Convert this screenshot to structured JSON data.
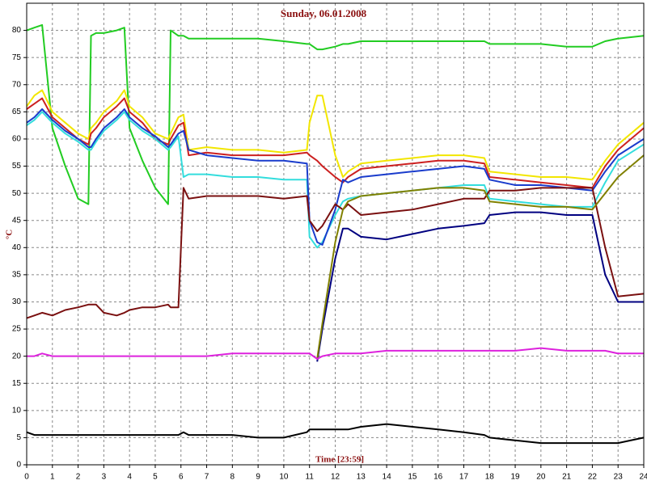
{
  "chart_data": {
    "type": "line",
    "title": "Sunday, 06.01.2008",
    "x_label": "Time [23:59]",
    "y_label": "°C",
    "xlim": [
      0,
      24
    ],
    "ylim": [
      0,
      85
    ],
    "xticks": [
      0,
      1,
      2,
      3,
      4,
      5,
      6,
      7,
      8,
      9,
      10,
      11,
      12,
      13,
      14,
      15,
      16,
      17,
      18,
      19,
      20,
      21,
      22,
      23,
      24
    ],
    "yticks": [
      0,
      5,
      10,
      15,
      20,
      25,
      30,
      35,
      40,
      45,
      50,
      55,
      60,
      65,
      70,
      75,
      80
    ],
    "grid": true,
    "x": [
      0,
      0.3,
      0.6,
      1,
      1.5,
      2,
      2.4,
      2.5,
      2.7,
      3,
      3.5,
      3.8,
      4,
      4.5,
      5,
      5.5,
      5.6,
      5.9,
      6.1,
      6.3,
      7,
      8,
      9,
      10,
      10.9,
      11,
      11.3,
      11.5,
      12,
      12.3,
      12.5,
      13,
      14,
      15,
      16,
      17,
      17.8,
      18,
      19,
      20,
      21,
      22,
      22.5,
      23,
      24
    ],
    "series": [
      {
        "color": "#22cc22",
        "values": [
          80,
          80.5,
          81,
          62,
          55,
          49,
          48,
          79,
          79.5,
          79.5,
          80,
          80.5,
          62,
          56,
          51,
          48,
          80,
          79,
          79,
          78.5,
          78.5,
          78.5,
          78.5,
          78,
          77.5,
          77.5,
          76.5,
          76.5,
          77,
          77.5,
          77.5,
          78,
          78,
          78,
          78,
          78,
          78,
          77.5,
          77.5,
          77.5,
          77,
          77,
          78,
          78.5,
          79
        ]
      },
      {
        "color": "#f2e600",
        "values": [
          66,
          68,
          69,
          65,
          63,
          61,
          60,
          62,
          63,
          65,
          67,
          69,
          66,
          64,
          61,
          60,
          61,
          64,
          64.5,
          58,
          58.5,
          58,
          58,
          57.5,
          58,
          63,
          68,
          68,
          57,
          53,
          54,
          55.5,
          56,
          56.5,
          57,
          57,
          56.5,
          54,
          53.5,
          53,
          53,
          52.5,
          56,
          59,
          63
        ]
      },
      {
        "color": "#cc2020",
        "values": [
          65.5,
          66.5,
          67.5,
          64,
          62,
          60,
          59,
          61,
          62,
          64,
          66,
          67.5,
          65,
          63,
          60,
          59,
          60,
          62.5,
          63,
          57,
          57.5,
          57,
          57,
          57,
          57.5,
          57,
          56,
          55,
          53,
          52,
          53,
          54.5,
          55,
          55.5,
          56,
          56,
          55.5,
          53,
          52.5,
          52,
          51.5,
          51,
          55,
          58,
          62
        ]
      },
      {
        "color": "#33dddd",
        "values": [
          62.5,
          63.5,
          65,
          63,
          61,
          59.5,
          58,
          58,
          59.5,
          61.5,
          63.5,
          65,
          63.5,
          61.5,
          60,
          58,
          58.5,
          60.5,
          53,
          53.5,
          53.5,
          53,
          53,
          52.5,
          52.5,
          42,
          40,
          41,
          46,
          48.5,
          49,
          49.5,
          50,
          50.5,
          51,
          51.5,
          51.5,
          49,
          48.5,
          48,
          47.5,
          47.5,
          52,
          56,
          59
        ]
      },
      {
        "color": "#1a3ccc",
        "values": [
          63,
          64,
          65.5,
          63.5,
          61.5,
          60,
          58.5,
          58.5,
          60,
          62,
          64,
          65.5,
          64,
          62,
          60.5,
          58.5,
          59,
          61,
          61.5,
          58,
          57,
          56.5,
          56,
          56,
          55.5,
          45,
          41,
          40.5,
          47,
          52.5,
          52,
          53,
          53.5,
          54,
          54.5,
          55,
          54.5,
          52.5,
          51.5,
          51.5,
          51,
          50.5,
          54,
          57,
          60
        ]
      },
      {
        "color": "#7a1010",
        "values": [
          27,
          27.5,
          28,
          27.5,
          28.5,
          29,
          29.5,
          29.5,
          29.5,
          28,
          27.5,
          28,
          28.5,
          29,
          29,
          29.5,
          29,
          29,
          51,
          49,
          49.5,
          49.5,
          49.5,
          49,
          49.5,
          45,
          43,
          44,
          48,
          47,
          48,
          46,
          46.5,
          47,
          48,
          49,
          49,
          50.5,
          50.5,
          51,
          51,
          51,
          40,
          31,
          31.5
        ]
      },
      {
        "color": "#000080",
        "values": [
          null,
          null,
          null,
          null,
          null,
          null,
          null,
          null,
          null,
          null,
          null,
          null,
          null,
          null,
          null,
          null,
          null,
          null,
          null,
          null,
          null,
          null,
          null,
          null,
          null,
          null,
          19,
          25,
          38,
          43.5,
          43.5,
          42,
          41.5,
          42.5,
          43.5,
          44,
          44.5,
          46,
          46.5,
          46.5,
          46,
          46,
          35,
          30,
          30
        ]
      },
      {
        "color": "#808000",
        "values": [
          null,
          null,
          null,
          null,
          null,
          null,
          null,
          null,
          null,
          null,
          null,
          null,
          null,
          null,
          null,
          null,
          null,
          null,
          null,
          null,
          null,
          null,
          null,
          null,
          null,
          null,
          19.5,
          26,
          41,
          47,
          48.5,
          49.5,
          50,
          50.5,
          51,
          51,
          50.5,
          48.5,
          48,
          47.5,
          47.5,
          47,
          50,
          53,
          57
        ]
      },
      {
        "color": "#dd22dd",
        "values": [
          20,
          20,
          20.5,
          20,
          20,
          20,
          20,
          20,
          20,
          20,
          20,
          20,
          20,
          20,
          20,
          20,
          20,
          20,
          20,
          20,
          20,
          20.5,
          20.5,
          20.5,
          20.5,
          20.5,
          19.5,
          20,
          20.5,
          20.5,
          20.5,
          20.5,
          21,
          21,
          21,
          21,
          21,
          21,
          21,
          21.5,
          21,
          21,
          21,
          20.5,
          20.5
        ]
      },
      {
        "color": "#000000",
        "values": [
          6,
          5.5,
          5.5,
          5.5,
          5.5,
          5.5,
          5.5,
          5.5,
          5.5,
          5.5,
          5.5,
          5.5,
          5.5,
          5.5,
          5.5,
          5.5,
          5.5,
          5.5,
          6,
          5.5,
          5.5,
          5.5,
          5,
          5,
          6,
          6.5,
          6.5,
          6.5,
          6.5,
          6.5,
          6.5,
          7,
          7.5,
          7,
          6.5,
          6,
          5.5,
          5,
          4.5,
          4,
          4,
          4,
          4,
          4,
          5
        ]
      }
    ]
  }
}
